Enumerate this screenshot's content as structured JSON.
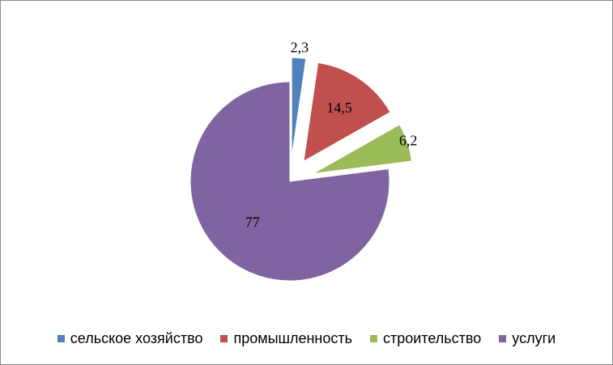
{
  "chart_data": {
    "type": "pie",
    "title": "",
    "categories": [
      "сельское хозяйство",
      "промышленность",
      "строительство",
      "услуги"
    ],
    "values": [
      2.3,
      14.5,
      6.2,
      77
    ],
    "data_labels": [
      "2,3",
      "14,5",
      "6,2",
      "77"
    ],
    "colors": [
      "#4F81BD",
      "#C0504D",
      "#9BBB59",
      "#8064A2"
    ],
    "exploded": [
      true,
      true,
      true,
      false
    ],
    "start_angle_deg": 0,
    "direction": "clockwise",
    "legend_position": "bottom"
  }
}
